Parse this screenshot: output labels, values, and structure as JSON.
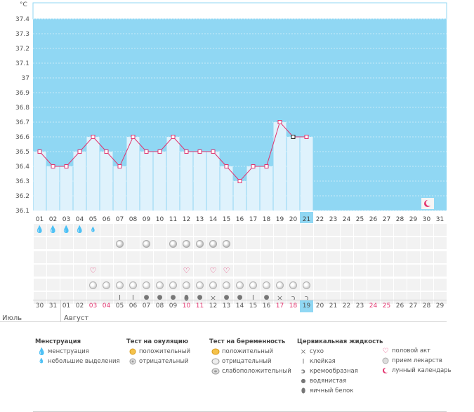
{
  "chart_data": {
    "type": "line",
    "unit_label": "°C",
    "y_ticks": [
      "37.4",
      "37.3",
      "37.2",
      "37.1",
      "37",
      "36.9",
      "36.8",
      "36.7",
      "36.6",
      "36.5",
      "36.4",
      "36.3",
      "36.2",
      "36.1"
    ],
    "ylim": [
      36.1,
      37.4
    ],
    "cycle_days": [
      "01",
      "02",
      "03",
      "04",
      "05",
      "06",
      "07",
      "08",
      "09",
      "10",
      "11",
      "12",
      "13",
      "14",
      "15",
      "16",
      "17",
      "18",
      "19",
      "20",
      "21",
      "22",
      "23",
      "24",
      "25",
      "26",
      "27",
      "28",
      "29",
      "30",
      "31"
    ],
    "temperatures": [
      36.5,
      36.4,
      36.4,
      36.5,
      36.6,
      36.5,
      36.4,
      36.6,
      36.5,
      36.5,
      36.6,
      36.5,
      36.5,
      36.5,
      36.4,
      36.3,
      36.4,
      36.4,
      36.7,
      36.6,
      36.6
    ],
    "current_day": "21",
    "fill_color": "#dff2fc",
    "background_color": "#90d7f3",
    "line_color": "#e2336e"
  },
  "calendar_dates": [
    {
      "d": "30",
      "red": false
    },
    {
      "d": "31",
      "red": false
    },
    {
      "d": "01",
      "red": false
    },
    {
      "d": "02",
      "red": false
    },
    {
      "d": "03",
      "red": true
    },
    {
      "d": "04",
      "red": true
    },
    {
      "d": "05",
      "red": false
    },
    {
      "d": "06",
      "red": false
    },
    {
      "d": "07",
      "red": false
    },
    {
      "d": "08",
      "red": false
    },
    {
      "d": "09",
      "red": false
    },
    {
      "d": "10",
      "red": true
    },
    {
      "d": "11",
      "red": true
    },
    {
      "d": "12",
      "red": false
    },
    {
      "d": "13",
      "red": false
    },
    {
      "d": "14",
      "red": false
    },
    {
      "d": "15",
      "red": false
    },
    {
      "d": "16",
      "red": false
    },
    {
      "d": "17",
      "red": true
    },
    {
      "d": "18",
      "red": true
    },
    {
      "d": "19",
      "red": false
    },
    {
      "d": "20",
      "red": false
    },
    {
      "d": "21",
      "red": false
    },
    {
      "d": "22",
      "red": false
    },
    {
      "d": "23",
      "red": false
    },
    {
      "d": "24",
      "red": true
    },
    {
      "d": "25",
      "red": true
    },
    {
      "d": "26",
      "red": false
    },
    {
      "d": "27",
      "red": false
    },
    {
      "d": "28",
      "red": false
    },
    {
      "d": "29",
      "red": false
    }
  ],
  "months": {
    "july": "Июль",
    "august": "Август"
  },
  "rows": {
    "menstruation": [
      "big",
      "big",
      "big",
      "big",
      "small",
      "",
      "",
      "",
      "",
      "",
      "",
      "",
      "",
      "",
      "",
      "",
      "",
      "",
      "",
      "",
      "",
      "",
      "",
      "",
      "",
      "",
      "",
      "",
      "",
      "",
      ""
    ],
    "ovulation": [
      "",
      "",
      "",
      "",
      "",
      "",
      "neg",
      "",
      "neg",
      "",
      "neg",
      "neg",
      "neg",
      "neg",
      "neg",
      "",
      "",
      "",
      "",
      "",
      "",
      "",
      "",
      "",
      "",
      "",
      "",
      "",
      "",
      "",
      ""
    ],
    "intercourse": [
      "",
      "",
      "",
      "",
      "yes",
      "",
      "",
      "",
      "",
      "",
      "",
      "yes",
      "",
      "yes",
      "yes",
      "",
      "",
      "",
      "",
      "",
      "",
      "",
      "",
      "",
      "",
      "",
      "",
      "",
      "",
      "",
      ""
    ],
    "medication": [
      "",
      "",
      "",
      "",
      "pill",
      "pill",
      "pill",
      "pill",
      "pill",
      "pill",
      "pill",
      "pill",
      "pill",
      "pill",
      "pill",
      "pill",
      "pill",
      "pill",
      "pill",
      "pill",
      "pill",
      "",
      "",
      "",
      "",
      "",
      "",
      "",
      "",
      "",
      ""
    ],
    "fluid": [
      "",
      "",
      "",
      "",
      "",
      "",
      "sticky",
      "sticky",
      "drop",
      "drop",
      "drop",
      "egg",
      "drop",
      "dry",
      "drop",
      "drop",
      "sticky",
      "drop",
      "dry",
      "creamy",
      "creamy",
      "",
      "",
      "",
      "",
      "",
      "",
      "",
      "",
      "",
      ""
    ]
  },
  "legend": {
    "menstruation": {
      "title": "Менструация",
      "items": [
        "менструация",
        "небольшие выделения"
      ]
    },
    "ovulation_test": {
      "title": "Тест на овуляцию",
      "items": [
        "положительный",
        "отрицательный"
      ]
    },
    "pregnancy_test": {
      "title": "Тест на беременность",
      "items": [
        "положительный",
        "отрицательный",
        "слабоположительный"
      ]
    },
    "cervical_fluid": {
      "title": "Цервикальная жидкость",
      "items": [
        "сухо",
        "клейкая",
        "кремообразная",
        "водянистая",
        "яичный белок"
      ]
    },
    "other": {
      "items": [
        "половой акт",
        "прием лекарств",
        "лунный календарь"
      ]
    }
  }
}
